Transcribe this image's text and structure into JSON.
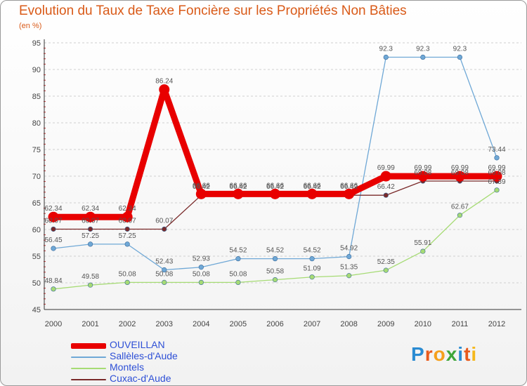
{
  "title": "Evolution du Taux de Taxe Foncière sur les Propriétés Non Bâties",
  "subtitle": "(en %)",
  "brand": {
    "text": "Proxiti",
    "letters": [
      "P",
      "r",
      "o",
      "x",
      "i",
      "t",
      "i"
    ],
    "colors": [
      "#2a8bd2",
      "#e85a1c",
      "#f5a01c",
      "#3fa63a",
      "#2a8bd2",
      "#e85a1c",
      "#f5b81c"
    ]
  },
  "chart_data": {
    "type": "line",
    "title": "Evolution du Taux de Taxe Foncière sur les Propriétés Non Bâties",
    "ylabel": "(en %)",
    "xlabel": "",
    "x": [
      "2000",
      "2001",
      "2002",
      "2003",
      "2004",
      "2005",
      "2006",
      "2007",
      "2008",
      "2009",
      "2010",
      "2011",
      "2012"
    ],
    "ylim": [
      45,
      95
    ],
    "yticks": [
      "45",
      "50",
      "55",
      "60",
      "65",
      "70",
      "75",
      "80",
      "85",
      "90",
      "95"
    ],
    "legend_position": "bottom-left",
    "series": [
      {
        "name": "OUVEILLAN",
        "color": "#e80000",
        "values": [
          62.34,
          62.34,
          62.34,
          86.24,
          66.66,
          66.66,
          66.66,
          66.66,
          66.66,
          69.99,
          69.99,
          69.99,
          69.99
        ],
        "labels": [
          "62.34",
          "62.34",
          "62.34",
          "86.24",
          "66.66",
          "66.66",
          "66.66",
          "66.66",
          "66.66",
          "69.99",
          "69.99",
          "69.99",
          "69.99"
        ]
      },
      {
        "name": "Sallèles-d'Aude",
        "color": "#6fa8d6",
        "values": [
          56.45,
          57.25,
          57.25,
          52.43,
          52.93,
          54.52,
          54.52,
          54.52,
          54.92,
          92.3,
          92.3,
          92.3,
          73.44
        ],
        "labels": [
          "56.45",
          "57.25",
          "57.25",
          "52.43",
          "52.93",
          "54.52",
          "54.52",
          "54.52",
          "54.92",
          "92.3",
          "92.3",
          "92.3",
          "73.44"
        ]
      },
      {
        "name": "Montels",
        "color": "#a6db74",
        "values": [
          48.84,
          49.58,
          50.08,
          50.08,
          50.08,
          50.08,
          50.58,
          51.09,
          51.35,
          52.35,
          55.91,
          62.67,
          67.39
        ],
        "labels": [
          "48.84",
          "49.58",
          "50.08",
          "50.08",
          "50.08",
          "50.08",
          "50.58",
          "51.09",
          "51.35",
          "52.35",
          "55.91",
          "62.67",
          "67.39"
        ]
      },
      {
        "name": "Cuxac-d'Aude",
        "color": "#7a2a2a",
        "values": [
          60.07,
          60.07,
          60.07,
          60.07,
          66.42,
          66.42,
          66.42,
          66.42,
          66.42,
          66.42,
          69.08,
          69.08,
          69.08
        ],
        "labels": [
          "60.07",
          "60.07",
          "60.07",
          "60.07",
          "66.42",
          "66.42",
          "66.42",
          "66.42",
          "66.42",
          "66.42",
          "69.08",
          "69.08",
          "69.08"
        ]
      }
    ]
  }
}
